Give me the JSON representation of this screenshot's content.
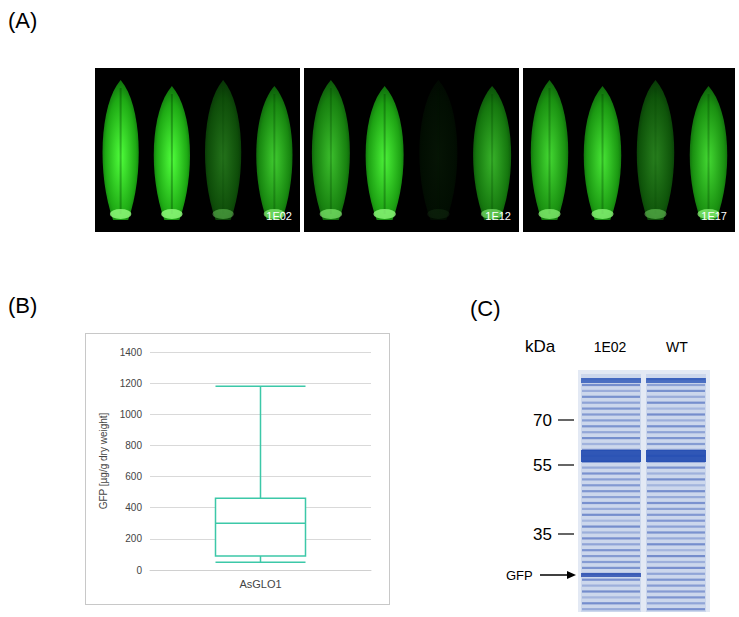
{
  "chart_data": {
    "type": "boxplot",
    "categories": [
      "AsGLO1"
    ],
    "values": [
      {
        "min": 50,
        "q1": 90,
        "median": 300,
        "q3": 460,
        "max": 1180
      }
    ],
    "y_label": "GFP [µg/g dry weight]",
    "color": "#3cc8a8",
    "ylim": [
      0,
      1400
    ],
    "yticks": [
      0,
      200,
      400,
      600,
      800,
      1000,
      1200,
      1400
    ],
    "grid": true
  },
  "panel_labels": [
    "(A)",
    "(B)",
    "(C)"
  ],
  "image_panel": {
    "labels": [
      "1E02",
      "1E12",
      "1E17"
    ]
  },
  "gel": {
    "unit": "kDa",
    "lanes": [
      "1E02",
      "WT"
    ],
    "markers": [
      70,
      55,
      35
    ],
    "band_label": "GFP"
  }
}
